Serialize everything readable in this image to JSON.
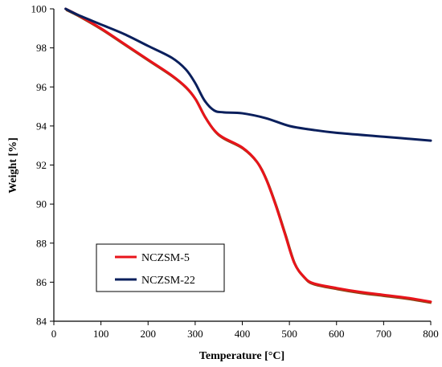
{
  "chart_data": {
    "type": "line",
    "title": "",
    "xlabel": "Temperature [°C]",
    "ylabel": "Weight [%]",
    "xlim": [
      0,
      800
    ],
    "ylim": [
      84,
      100
    ],
    "xticks": [
      0,
      100,
      200,
      300,
      400,
      500,
      600,
      700,
      800
    ],
    "yticks": [
      84,
      86,
      88,
      90,
      92,
      94,
      96,
      98,
      100
    ],
    "grid": false,
    "legend_position": "bottom-left",
    "series": [
      {
        "name": "NCZSM-5",
        "color": "#e8141b",
        "shadow_color": "#8b4513",
        "x": [
          25,
          50,
          100,
          150,
          200,
          250,
          280,
          300,
          320,
          340,
          360,
          400,
          430,
          450,
          470,
          490,
          510,
          530,
          550,
          600,
          650,
          700,
          750,
          800
        ],
        "y": [
          100,
          99.7,
          99.0,
          98.2,
          97.4,
          96.6,
          96.0,
          95.4,
          94.5,
          93.8,
          93.4,
          92.9,
          92.2,
          91.3,
          90.0,
          88.5,
          87.0,
          86.3,
          85.95,
          85.7,
          85.5,
          85.35,
          85.2,
          85.0
        ]
      },
      {
        "name": "NCZSM-22",
        "color": "#0a1f5c",
        "x": [
          25,
          50,
          100,
          150,
          200,
          250,
          280,
          300,
          320,
          340,
          360,
          400,
          450,
          500,
          550,
          600,
          700,
          800
        ],
        "y": [
          100,
          99.7,
          99.2,
          98.7,
          98.1,
          97.5,
          96.9,
          96.2,
          95.3,
          94.8,
          94.7,
          94.65,
          94.4,
          94.0,
          93.8,
          93.65,
          93.45,
          93.25
        ]
      }
    ]
  }
}
